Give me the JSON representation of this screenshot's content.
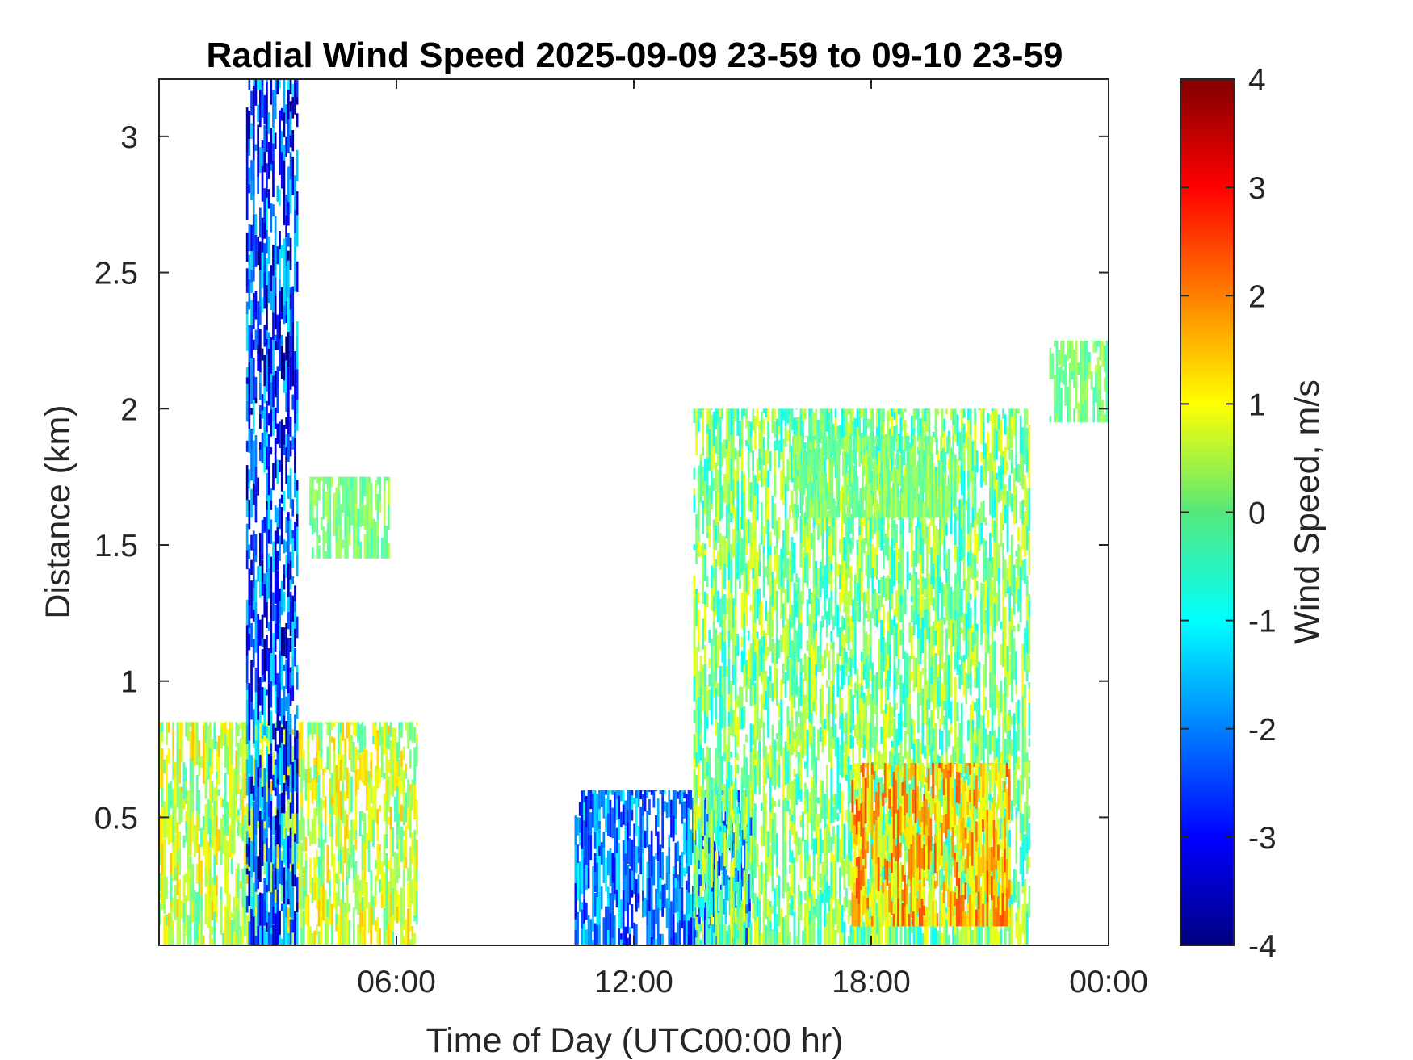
{
  "chart_data": {
    "type": "heatmap",
    "title": "Radial Wind Speed 2025-09-09 23-59 to 09-10 23-59",
    "xlabel": "Time of Day (UTC00:00 hr)",
    "ylabel": "Distance (km)",
    "x_unit": "hours",
    "xlim": [
      0,
      24
    ],
    "ylim": [
      0.03,
      3.21
    ],
    "x_ticks": [
      6,
      12,
      18,
      24
    ],
    "x_tick_labels": [
      "06:00",
      "12:00",
      "18:00",
      "00:00"
    ],
    "y_ticks": [
      0.5,
      1,
      1.5,
      2,
      2.5,
      3
    ],
    "y_tick_labels": [
      "0.5",
      "1",
      "1.5",
      "2",
      "2.5",
      "3"
    ],
    "colorbar": {
      "label": "Wind Speed, m/s",
      "colormap": "jet",
      "limits": [
        -4,
        4
      ],
      "ticks": [
        -4,
        -3,
        -2,
        -1,
        0,
        1,
        2,
        3,
        4
      ],
      "tick_labels": [
        "-4",
        "-3",
        "-2",
        "-1",
        "0",
        "1",
        "2",
        "3",
        "4"
      ]
    },
    "approximate_regions": [
      {
        "x": [
          0,
          6.5
        ],
        "y": [
          0.03,
          0.85
        ],
        "value_range": [
          -0.5,
          1.5
        ]
      },
      {
        "x": [
          2.2,
          3.5
        ],
        "y": [
          0.03,
          3.21
        ],
        "value_range": [
          -4,
          -1
        ]
      },
      {
        "x": [
          3.8,
          5.8
        ],
        "y": [
          1.45,
          1.75
        ],
        "value_range": [
          -0.5,
          0.5
        ]
      },
      {
        "x": [
          10.5,
          15.0
        ],
        "y": [
          0.03,
          0.6
        ],
        "value_range": [
          -3,
          -1
        ]
      },
      {
        "x": [
          13.5,
          22.0
        ],
        "y": [
          0.03,
          2.0
        ],
        "value_range": [
          -1,
          1
        ]
      },
      {
        "x": [
          16.0,
          20.0
        ],
        "y": [
          1.6,
          1.9
        ],
        "value_range": [
          -0.5,
          0.5
        ]
      },
      {
        "x": [
          22.5,
          24.0
        ],
        "y": [
          1.95,
          2.25
        ],
        "value_range": [
          -0.5,
          0.5
        ]
      },
      {
        "x": [
          17.5,
          21.5
        ],
        "y": [
          0.1,
          0.7
        ],
        "value_range": [
          0.5,
          2.5
        ]
      }
    ]
  }
}
